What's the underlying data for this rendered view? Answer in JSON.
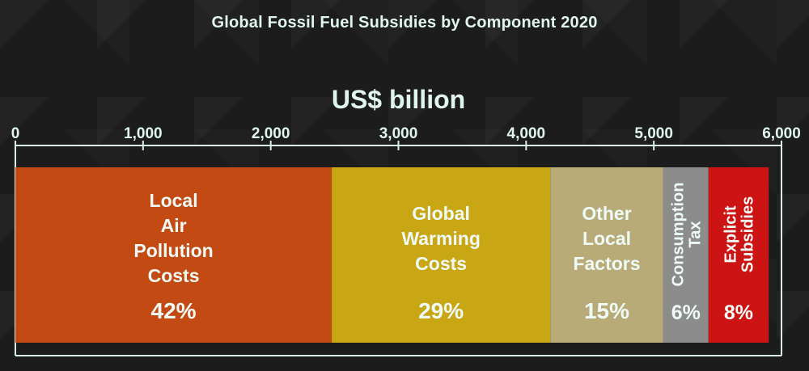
{
  "chart_data": {
    "type": "bar",
    "orientation": "horizontal-stacked",
    "title": "Global Fossil Fuel Subsidies by Component 2020",
    "xlabel": "US$ billion",
    "xlim": [
      0,
      6000
    ],
    "ticks": [
      0,
      1000,
      2000,
      3000,
      4000,
      5000,
      6000
    ],
    "tick_labels": [
      "0",
      "1,000",
      "2,000",
      "3,000",
      "4,000",
      "5,000",
      "6,000"
    ],
    "total": 5900,
    "segments": [
      {
        "lines": [
          "Local",
          "Air",
          "Pollution",
          "Costs"
        ],
        "percent_label": "42%",
        "value": 2478,
        "color": "#c44a14"
      },
      {
        "lines": [
          "Global",
          "Warming",
          "Costs"
        ],
        "percent_label": "29%",
        "value": 1711,
        "color": "#c9a614"
      },
      {
        "lines": [
          "Other",
          "Local",
          "Factors"
        ],
        "percent_label": "15%",
        "value": 885,
        "color": "#b8ab78"
      },
      {
        "lines": [
          "Consumption",
          "Tax"
        ],
        "percent_label": "6%",
        "value": 354,
        "color": "#8c8c8c",
        "rotated": true
      },
      {
        "lines": [
          "Explicit",
          "Subsidies"
        ],
        "percent_label": "8%",
        "value": 472,
        "color": "#cc1414",
        "rotated": true
      }
    ]
  }
}
